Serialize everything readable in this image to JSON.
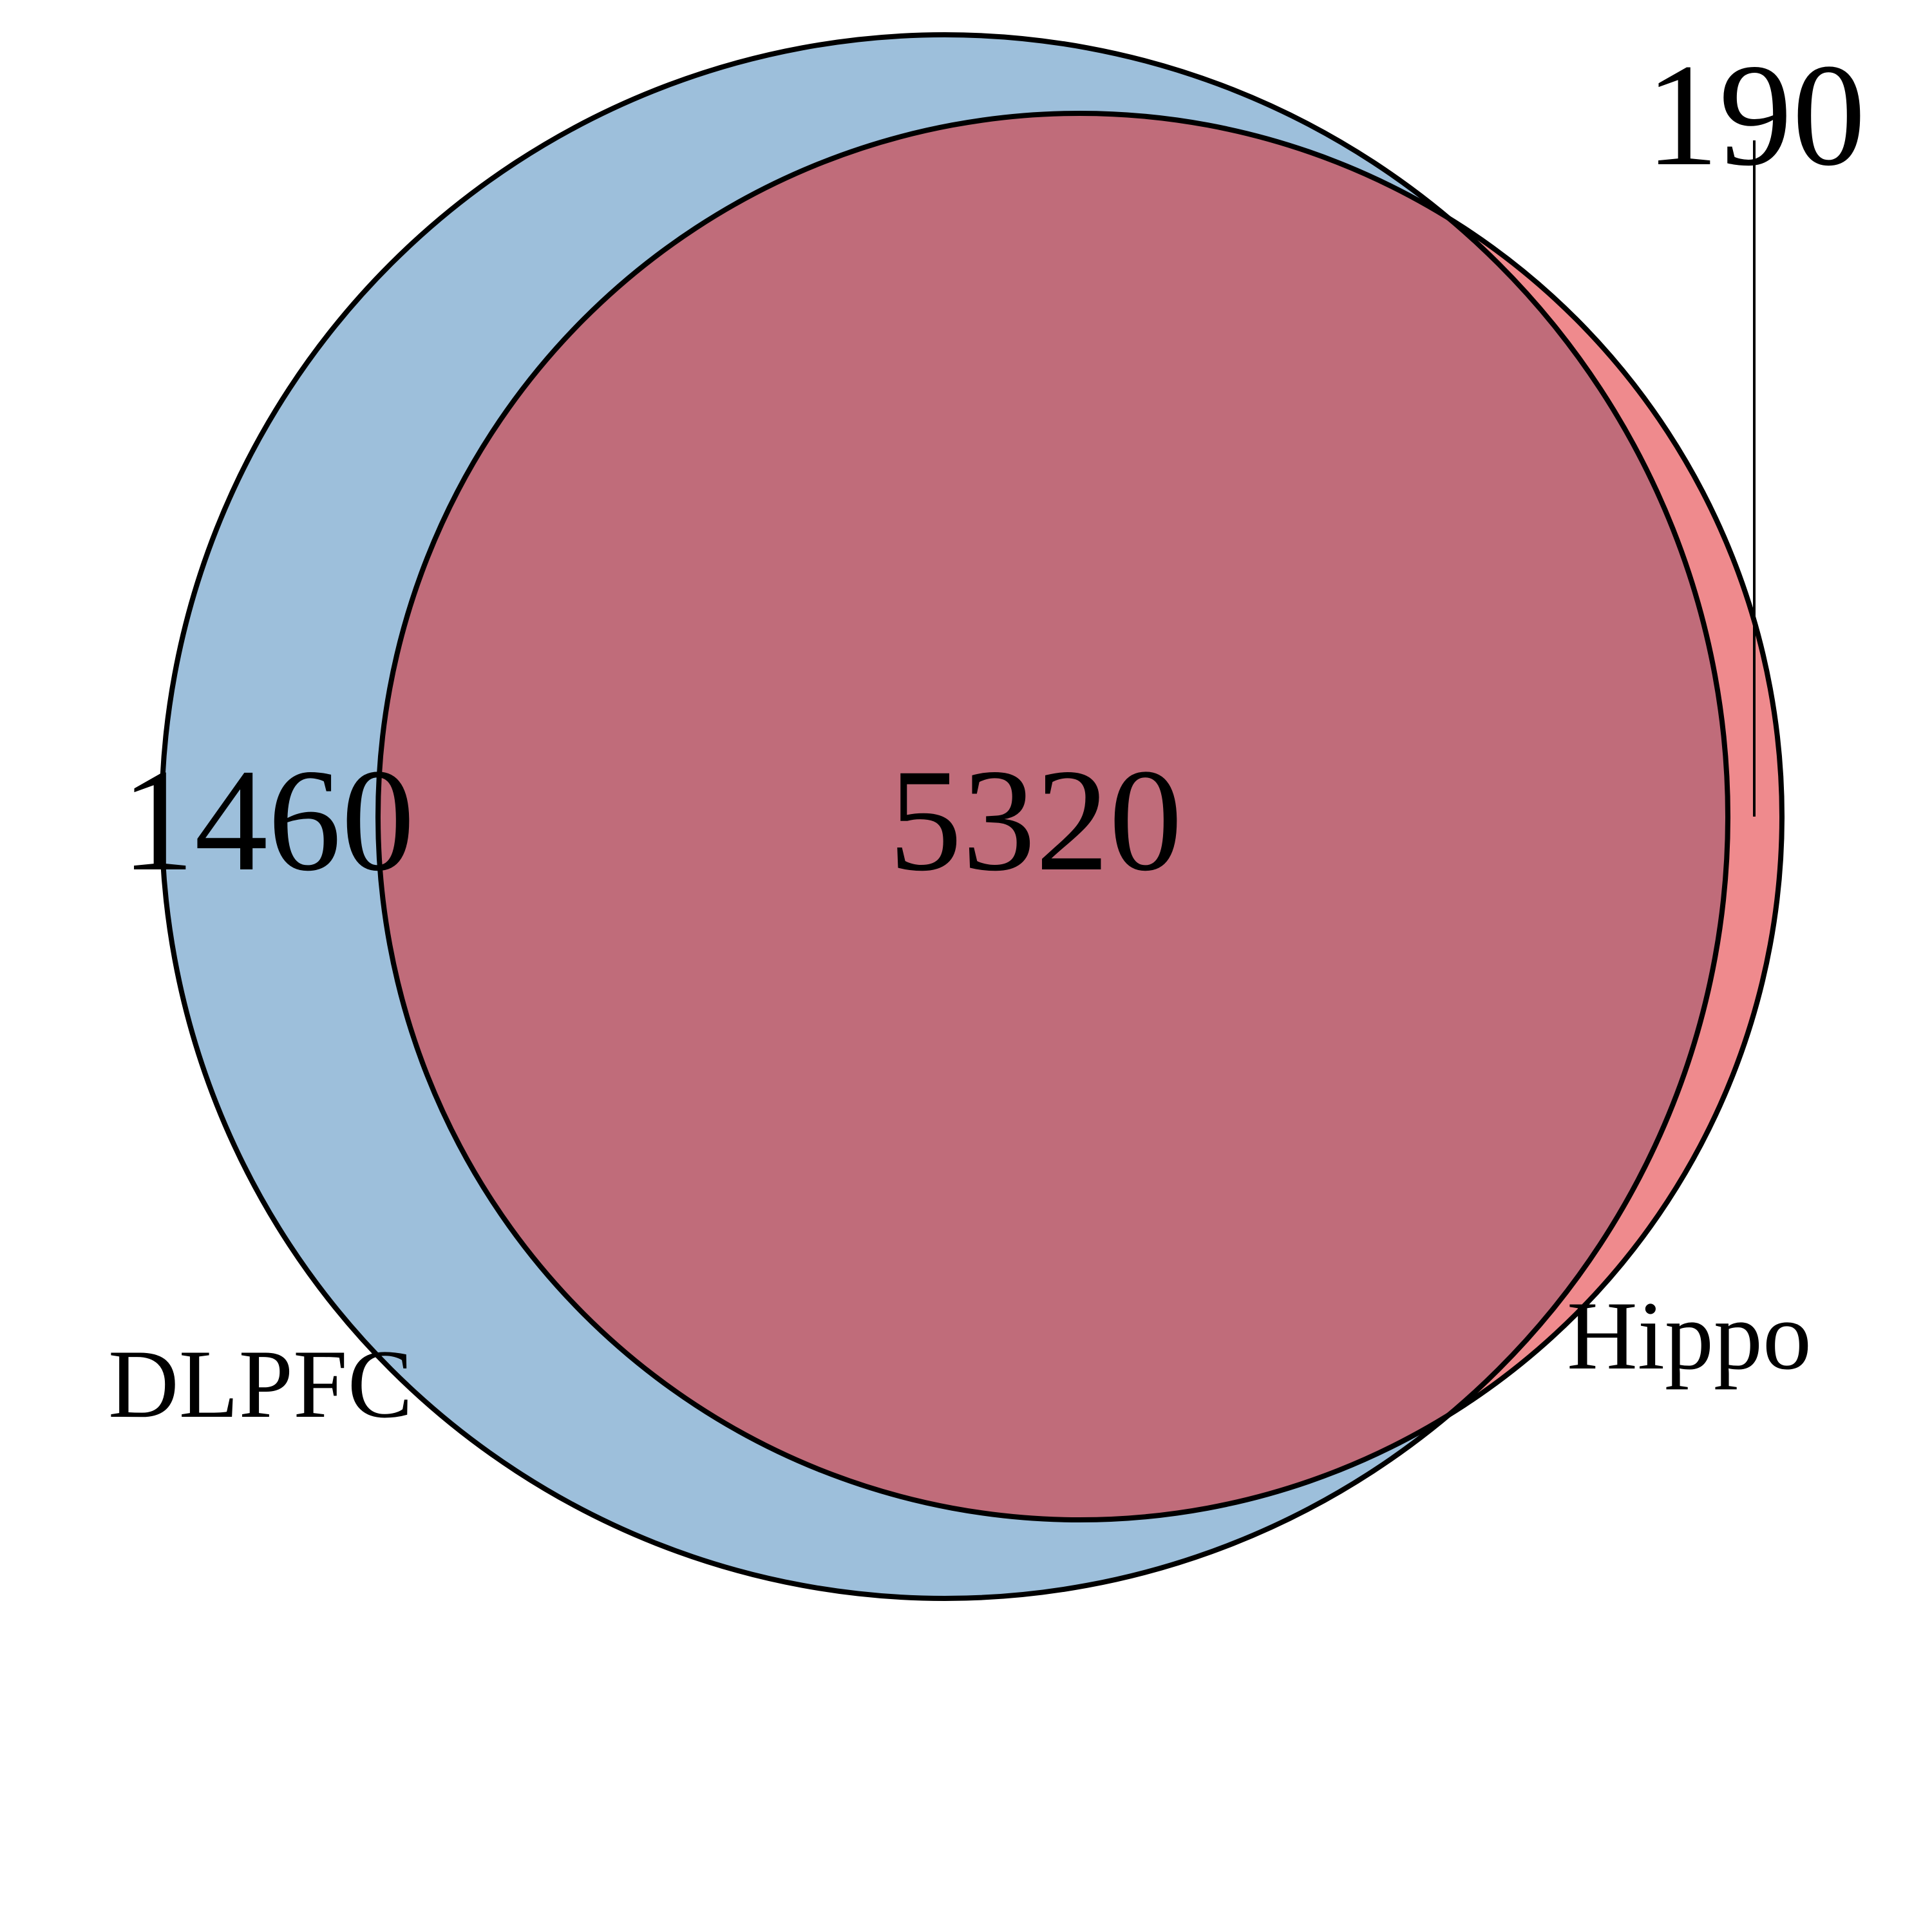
{
  "sets": [
    {
      "name": "DLPFC",
      "color": "#9dbfdb"
    },
    {
      "name": "Hippo",
      "color": "#ef8a8d"
    }
  ],
  "regions": {
    "dlpfc_only": "1460",
    "overlap": "5320",
    "hippo_only": "190"
  },
  "colors": {
    "overlap": "#c06c7a",
    "outline": "#000000",
    "background": "#ffffff"
  }
}
